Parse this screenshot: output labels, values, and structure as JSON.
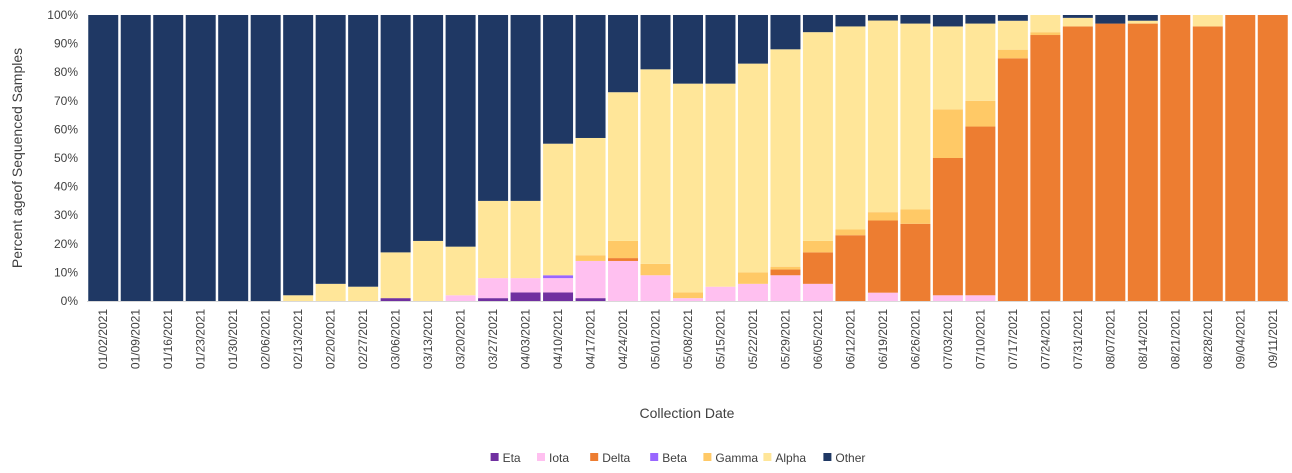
{
  "chart_data": {
    "type": "bar",
    "stacked": true,
    "percent_stacked": true,
    "title": "",
    "xlabel": "Collection Date",
    "ylabel": "Percent ageof Sequenced Samples",
    "ylim": [
      0,
      100
    ],
    "yticks": [
      "0%",
      "10%",
      "20%",
      "30%",
      "40%",
      "50%",
      "60%",
      "70%",
      "80%",
      "90%",
      "100%"
    ],
    "grid": false,
    "legend_position": "bottom",
    "categories": [
      "01/02/2021",
      "01/09/2021",
      "01/16/2021",
      "01/23/2021",
      "01/30/2021",
      "02/06/2021",
      "02/13/2021",
      "02/20/2021",
      "02/27/2021",
      "03/06/2021",
      "03/13/2021",
      "03/20/2021",
      "03/27/2021",
      "04/03/2021",
      "04/10/2021",
      "04/17/2021",
      "04/24/2021",
      "05/01/2021",
      "05/08/2021",
      "05/15/2021",
      "05/22/2021",
      "05/29/2021",
      "06/05/2021",
      "06/12/2021",
      "06/19/2021",
      "06/26/2021",
      "07/03/2021",
      "07/10/2021",
      "07/17/2021",
      "07/24/2021",
      "07/31/2021",
      "08/07/2021",
      "08/14/2021",
      "08/21/2021",
      "08/28/2021",
      "09/04/2021",
      "09/11/2021"
    ],
    "series": [
      {
        "name": "Eta",
        "color": "#7030a0",
        "values": [
          0,
          0,
          0,
          0,
          0,
          0,
          0,
          0,
          0,
          1,
          0,
          0,
          1,
          3,
          3,
          1,
          0,
          0,
          0,
          0,
          0,
          0,
          0,
          0,
          0,
          0,
          0,
          0,
          0,
          0,
          0,
          0,
          0,
          0,
          0,
          0,
          0
        ]
      },
      {
        "name": "Iota",
        "color": "#ffc0f0",
        "values": [
          0,
          0,
          0,
          0,
          0,
          0,
          0,
          0,
          0,
          0,
          0,
          2,
          7,
          5,
          5,
          13,
          14,
          9,
          1,
          5,
          6,
          9,
          6,
          0,
          3,
          0,
          2,
          2,
          0,
          0,
          0,
          0,
          0,
          0,
          0,
          0,
          0
        ]
      },
      {
        "name": "Delta",
        "color": "#ed7d31",
        "values": [
          0,
          0,
          0,
          0,
          0,
          0,
          0,
          0,
          0,
          0,
          0,
          0,
          0,
          0,
          0,
          0,
          1,
          0,
          0,
          0,
          0,
          2,
          11,
          23,
          26,
          27,
          48,
          59,
          84,
          93,
          96,
          97,
          97,
          100,
          96,
          100,
          100
        ]
      },
      {
        "name": "Beta",
        "color": "#9966ff",
        "values": [
          0,
          0,
          0,
          0,
          0,
          0,
          0,
          0,
          0,
          0,
          0,
          0,
          0,
          0,
          1,
          0,
          0,
          0,
          0,
          0,
          0,
          0,
          0,
          0,
          0,
          0,
          0,
          0,
          0,
          0,
          0,
          0,
          0,
          0,
          0,
          0,
          0
        ]
      },
      {
        "name": "Gamma",
        "color": "#ffc966",
        "values": [
          0,
          0,
          0,
          0,
          0,
          0,
          0,
          0,
          0,
          0,
          0,
          0,
          0,
          0,
          0,
          2,
          6,
          4,
          2,
          0,
          4,
          1,
          4,
          2,
          3,
          5,
          17,
          9,
          3,
          1,
          0,
          0,
          0,
          0,
          0,
          0,
          0
        ]
      },
      {
        "name": "Alpha",
        "color": "#ffe699",
        "values": [
          0,
          0,
          0,
          0,
          0,
          0,
          2,
          6,
          5,
          16,
          21,
          17,
          27,
          27,
          46,
          41,
          52,
          68,
          73,
          71,
          73,
          76,
          73,
          71,
          69,
          65,
          29,
          27,
          10,
          6,
          3,
          0,
          1,
          0,
          4,
          0,
          0
        ]
      },
      {
        "name": "Other",
        "color": "#1f3864",
        "values": [
          100,
          100,
          100,
          100,
          100,
          100,
          98,
          94,
          95,
          83,
          79,
          81,
          65,
          65,
          45,
          43,
          27,
          19,
          24,
          24,
          17,
          12,
          6,
          4,
          2,
          3,
          4,
          3,
          2,
          0,
          1,
          3,
          2,
          0,
          0,
          0,
          0
        ]
      }
    ]
  }
}
